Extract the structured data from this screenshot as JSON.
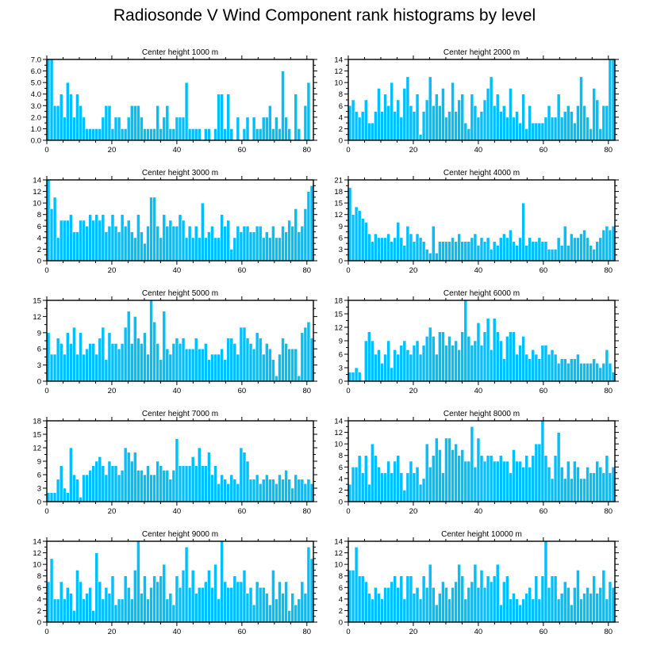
{
  "title": "Radiosonde V Wind Component rank histograms by level",
  "chart_data": [
    {
      "type": "bar",
      "title": "Center height 1000 m",
      "xlim": [
        0,
        82
      ],
      "ylim": [
        0,
        7
      ],
      "xticks": [
        0,
        20,
        40,
        60,
        80
      ],
      "yticks": [
        0,
        1,
        2,
        3,
        4,
        5,
        6,
        7
      ],
      "ytick_labels": [
        "0.0",
        "1.0",
        "2.0",
        "3.0",
        "4.0",
        "5.0",
        "6.0",
        "7.0"
      ],
      "values": [
        7,
        7,
        3,
        3,
        4,
        2,
        5,
        4,
        2,
        4,
        3,
        2,
        1,
        1,
        1,
        1,
        1,
        2,
        3,
        3,
        1,
        2,
        2,
        1,
        1,
        2,
        3,
        3,
        3,
        2,
        1,
        1,
        1,
        1,
        3,
        1,
        2,
        3,
        1,
        1,
        2,
        2,
        2,
        5,
        1,
        1,
        1,
        1,
        0,
        1,
        1,
        0,
        1,
        4,
        4,
        1,
        4,
        1,
        0,
        2,
        0,
        1,
        2,
        0,
        2,
        1,
        1,
        2,
        2,
        3,
        1,
        2,
        1,
        6,
        2,
        1,
        0,
        4,
        1,
        0,
        3,
        5,
        0
      ]
    },
    {
      "type": "bar",
      "title": "Center height 2000 m",
      "xlim": [
        0,
        82
      ],
      "ylim": [
        0,
        14
      ],
      "xticks": [
        0,
        20,
        40,
        60,
        80
      ],
      "yticks": [
        0,
        2,
        4,
        6,
        8,
        10,
        12,
        14
      ],
      "values": [
        6,
        7,
        5,
        4,
        5,
        7,
        3,
        3,
        5,
        9,
        5,
        8,
        6,
        10,
        5,
        7,
        4,
        9,
        11,
        6,
        5,
        8,
        1,
        5,
        7,
        11,
        6,
        8,
        6,
        9,
        4,
        5,
        10,
        5,
        7,
        8,
        3,
        2,
        8,
        6,
        4,
        5,
        7,
        9,
        11,
        6,
        8,
        5,
        6,
        4,
        9,
        4,
        5,
        3,
        8,
        2,
        6,
        3,
        3,
        3,
        3,
        4,
        6,
        4,
        4,
        8,
        4,
        5,
        6,
        5,
        3,
        6,
        11,
        6,
        4,
        2,
        9,
        7,
        2,
        6,
        6,
        14,
        14
      ]
    },
    {
      "type": "bar",
      "title": "Center height 3000 m",
      "xlim": [
        0,
        82
      ],
      "ylim": [
        0,
        14
      ],
      "xticks": [
        0,
        20,
        40,
        60,
        80
      ],
      "yticks": [
        0,
        2,
        4,
        6,
        8,
        10,
        12,
        14
      ],
      "values": [
        14,
        9,
        11,
        4,
        7,
        7,
        7,
        8,
        5,
        5,
        7,
        7,
        6,
        8,
        7,
        8,
        7,
        8,
        5,
        6,
        8,
        6,
        5,
        8,
        6,
        7,
        5,
        4,
        8,
        5,
        3,
        6,
        11,
        11,
        6,
        4,
        8,
        6,
        7,
        6,
        6,
        8,
        7,
        4,
        6,
        4,
        6,
        4,
        10,
        4,
        5,
        6,
        4,
        4,
        8,
        6,
        7,
        2,
        4,
        6,
        5,
        6,
        6,
        5,
        5,
        6,
        6,
        4,
        5,
        4,
        6,
        4,
        4,
        6,
        5,
        7,
        6,
        9,
        5,
        6,
        9,
        12,
        13
      ]
    },
    {
      "type": "bar",
      "title": "Center height 4000 m",
      "xlim": [
        0,
        82
      ],
      "ylim": [
        0,
        21
      ],
      "xticks": [
        0,
        20,
        40,
        60,
        80
      ],
      "yticks": [
        0,
        3,
        6,
        9,
        12,
        15,
        18,
        21
      ],
      "values": [
        19,
        12,
        14,
        13,
        11,
        10,
        7,
        5,
        7,
        6,
        6,
        6,
        7,
        5,
        6,
        10,
        6,
        4,
        9,
        7,
        5,
        7,
        6,
        5,
        3,
        2,
        9,
        2,
        5,
        5,
        5,
        5,
        6,
        5,
        7,
        5,
        5,
        5,
        6,
        7,
        4,
        6,
        5,
        6,
        3,
        5,
        4,
        6,
        7,
        6,
        8,
        5,
        4,
        6,
        15,
        4,
        6,
        5,
        5,
        6,
        5,
        5,
        3,
        3,
        3,
        6,
        4,
        9,
        4,
        7,
        6,
        6,
        7,
        8,
        6,
        4,
        3,
        5,
        6,
        8,
        9,
        8,
        9
      ]
    },
    {
      "type": "bar",
      "title": "Center height 5000 m",
      "xlim": [
        0,
        82
      ],
      "ylim": [
        0,
        15
      ],
      "xticks": [
        0,
        20,
        40,
        60,
        80
      ],
      "yticks": [
        0,
        3,
        6,
        9,
        12,
        15
      ],
      "values": [
        9,
        5,
        5,
        8,
        7,
        5,
        9,
        7,
        10,
        5,
        9,
        5,
        6,
        7,
        7,
        5,
        8,
        10,
        4,
        9,
        7,
        7,
        6,
        7,
        10,
        13,
        7,
        12,
        8,
        7,
        9,
        5,
        15,
        11,
        7,
        4,
        13,
        6,
        5,
        7,
        8,
        7,
        8,
        6,
        6,
        6,
        8,
        6,
        6,
        7,
        4,
        5,
        5,
        5,
        6,
        4,
        8,
        8,
        7,
        5,
        10,
        10,
        8,
        7,
        6,
        9,
        8,
        5,
        7,
        6,
        4,
        1,
        5,
        8,
        7,
        6,
        6,
        6,
        1,
        9,
        10,
        11,
        8
      ]
    },
    {
      "type": "bar",
      "title": "Center height 6000 m",
      "xlim": [
        0,
        82
      ],
      "ylim": [
        0,
        18
      ],
      "xticks": [
        0,
        20,
        40,
        60,
        80
      ],
      "yticks": [
        0,
        3,
        6,
        9,
        12,
        15,
        18
      ],
      "values": [
        2,
        2,
        3,
        2,
        0,
        9,
        11,
        9,
        6,
        7,
        4,
        6,
        9,
        3,
        7,
        6,
        8,
        9,
        7,
        6,
        8,
        9,
        6,
        8,
        10,
        12,
        10,
        6,
        11,
        11,
        8,
        10,
        8,
        9,
        7,
        11,
        18,
        10,
        8,
        9,
        13,
        8,
        11,
        14,
        7,
        14,
        11,
        9,
        5,
        10,
        11,
        11,
        6,
        8,
        10,
        6,
        5,
        7,
        6,
        5,
        8,
        8,
        6,
        7,
        6,
        4,
        5,
        5,
        4,
        5,
        5,
        6,
        4,
        4,
        4,
        4,
        5,
        4,
        3,
        4,
        7,
        4,
        2
      ]
    },
    {
      "type": "bar",
      "title": "Center height 7000 m",
      "xlim": [
        0,
        82
      ],
      "ylim": [
        0,
        18
      ],
      "xticks": [
        0,
        20,
        40,
        60,
        80
      ],
      "yticks": [
        0,
        3,
        6,
        9,
        12,
        15,
        18
      ],
      "values": [
        2,
        2,
        2,
        5,
        8,
        3,
        2,
        12,
        6,
        5,
        1,
        6,
        6,
        7,
        8,
        9,
        10,
        8,
        6,
        9,
        8,
        8,
        6,
        7,
        12,
        11,
        9,
        11,
        7,
        7,
        6,
        8,
        6,
        6,
        9,
        8,
        7,
        7,
        5,
        7,
        14,
        8,
        8,
        8,
        8,
        10,
        8,
        12,
        8,
        8,
        11,
        6,
        8,
        4,
        6,
        5,
        4,
        6,
        5,
        4,
        12,
        11,
        9,
        5,
        5,
        6,
        4,
        5,
        6,
        5,
        5,
        4,
        6,
        5,
        7,
        5,
        3,
        6,
        5,
        5,
        4,
        5,
        4
      ]
    },
    {
      "type": "bar",
      "title": "Center height 8000 m",
      "xlim": [
        0,
        82
      ],
      "ylim": [
        0,
        14
      ],
      "xticks": [
        0,
        20,
        40,
        60,
        80
      ],
      "yticks": [
        0,
        2,
        4,
        6,
        8,
        10,
        12,
        14
      ],
      "values": [
        3,
        6,
        6,
        8,
        5,
        8,
        3,
        10,
        8,
        6,
        5,
        5,
        7,
        5,
        7,
        8,
        5,
        2,
        5,
        7,
        5,
        6,
        3,
        4,
        10,
        6,
        8,
        11,
        9,
        5,
        11,
        11,
        9,
        10,
        8,
        9,
        7,
        7,
        13,
        6,
        11,
        8,
        7,
        8,
        8,
        7,
        7,
        8,
        7,
        7,
        5,
        9,
        7,
        7,
        6,
        8,
        6,
        8,
        10,
        10,
        14,
        8,
        6,
        4,
        8,
        12,
        6,
        4,
        7,
        4,
        7,
        6,
        4,
        4,
        6,
        5,
        5,
        7,
        6,
        5,
        8,
        5,
        6
      ]
    },
    {
      "type": "bar",
      "title": "Center height 9000 m",
      "xlim": [
        0,
        82
      ],
      "ylim": [
        0,
        14
      ],
      "xticks": [
        0,
        20,
        40,
        60,
        80
      ],
      "yticks": [
        0,
        2,
        4,
        6,
        8,
        10,
        12,
        14
      ],
      "values": [
        7,
        11,
        4,
        4,
        7,
        4,
        6,
        5,
        2,
        9,
        7,
        4,
        5,
        6,
        2,
        12,
        7,
        4,
        6,
        5,
        8,
        3,
        4,
        4,
        8,
        6,
        4,
        9,
        14,
        5,
        8,
        4,
        6,
        8,
        7,
        8,
        10,
        4,
        5,
        3,
        8,
        6,
        9,
        13,
        6,
        9,
        5,
        6,
        6,
        7,
        9,
        6,
        10,
        4,
        14,
        7,
        6,
        6,
        8,
        7,
        7,
        9,
        5,
        6,
        3,
        7,
        6,
        6,
        5,
        3,
        9,
        4,
        7,
        5,
        7,
        2,
        5,
        3,
        4,
        7,
        5,
        13,
        11
      ]
    },
    {
      "type": "bar",
      "title": "Center height 10000 m",
      "xlim": [
        0,
        82
      ],
      "ylim": [
        0,
        14
      ],
      "xticks": [
        0,
        20,
        40,
        60,
        80
      ],
      "yticks": [
        0,
        2,
        4,
        6,
        8,
        10,
        12,
        14
      ],
      "values": [
        9,
        9,
        13,
        8,
        8,
        7,
        5,
        4,
        6,
        5,
        4,
        6,
        6,
        7,
        8,
        6,
        8,
        4,
        8,
        8,
        5,
        6,
        4,
        8,
        6,
        10,
        6,
        3,
        5,
        7,
        6,
        4,
        6,
        7,
        10,
        8,
        4,
        6,
        7,
        10,
        6,
        9,
        6,
        8,
        7,
        8,
        10,
        3,
        7,
        8,
        4,
        5,
        4,
        3,
        4,
        5,
        6,
        4,
        8,
        4,
        8,
        14,
        6,
        8,
        8,
        4,
        5,
        7,
        6,
        3,
        6,
        9,
        4,
        5,
        6,
        5,
        8,
        5,
        6,
        9,
        4,
        7,
        6
      ]
    }
  ]
}
